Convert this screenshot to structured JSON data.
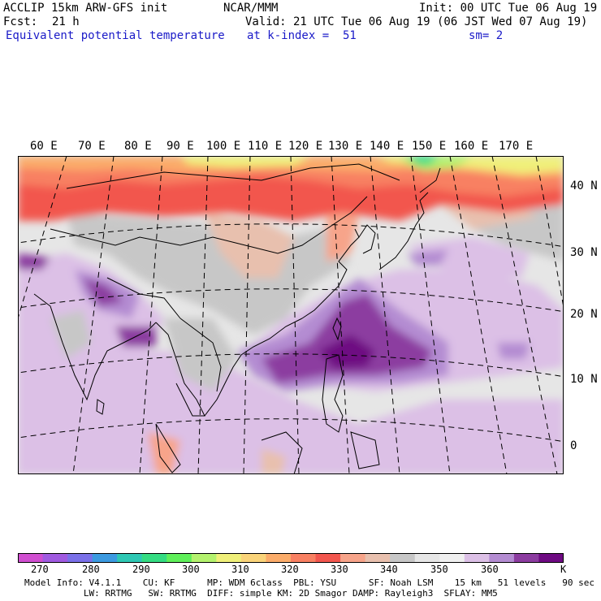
{
  "header": {
    "model_line": "ACCLIP 15km ARW-GFS init",
    "org": "NCAR/MMM",
    "init": "Init: 00 UTC Tue 06 Aug 19",
    "fcst_label": "Fcst:",
    "fcst_value": "21 h",
    "valid": "Valid: 21 UTC Tue 06 Aug 19 (06 JST Wed 07 Aug 19)",
    "field_name": "Equivalent potential temperature",
    "level": "at k-index =  51",
    "smoothing": "sm= 2"
  },
  "map": {
    "lon_labels": [
      "60 E",
      "70 E",
      "80 E",
      "90 E",
      "100 E",
      "110 E",
      "120 E",
      "130 E",
      "140 E",
      "150 E",
      "160 E",
      "170 E"
    ],
    "lat_labels": [
      "40 N",
      "30 N",
      "20 N",
      "10 N",
      "0"
    ],
    "colors": {
      "land_outline": "#000000",
      "gridline": "#000000"
    }
  },
  "colorbar": {
    "unit": "K",
    "labels": [
      "270",
      "280",
      "290",
      "300",
      "310",
      "320",
      "330",
      "340",
      "350",
      "360"
    ],
    "colors": [
      "#d04ed0",
      "#a05ae0",
      "#7a70e8",
      "#3c9ae0",
      "#2ec8b4",
      "#34dc82",
      "#5fef5a",
      "#b4f26e",
      "#f0f07a",
      "#fad47a",
      "#fbac6a",
      "#f88062",
      "#f2564e",
      "#f7a48a",
      "#e8c0ae",
      "#c7c7c7",
      "#e6e6e6",
      "#f0f0f0",
      "#dcc0e6",
      "#b48cd2",
      "#8c3ca0",
      "#6e0a82"
    ]
  },
  "model_info": {
    "line1": "Model Info: V4.1.1    CU: KF      MP: WDM 6class  PBL: YSU      SF: Noah LSM    15 km   51 levels   90 sec",
    "line2": "           LW: RRTMG   SW: RRTMG  DIFF: simple KM: 2D Smagor DAMP: Rayleigh3  SFLAY: MM5"
  }
}
